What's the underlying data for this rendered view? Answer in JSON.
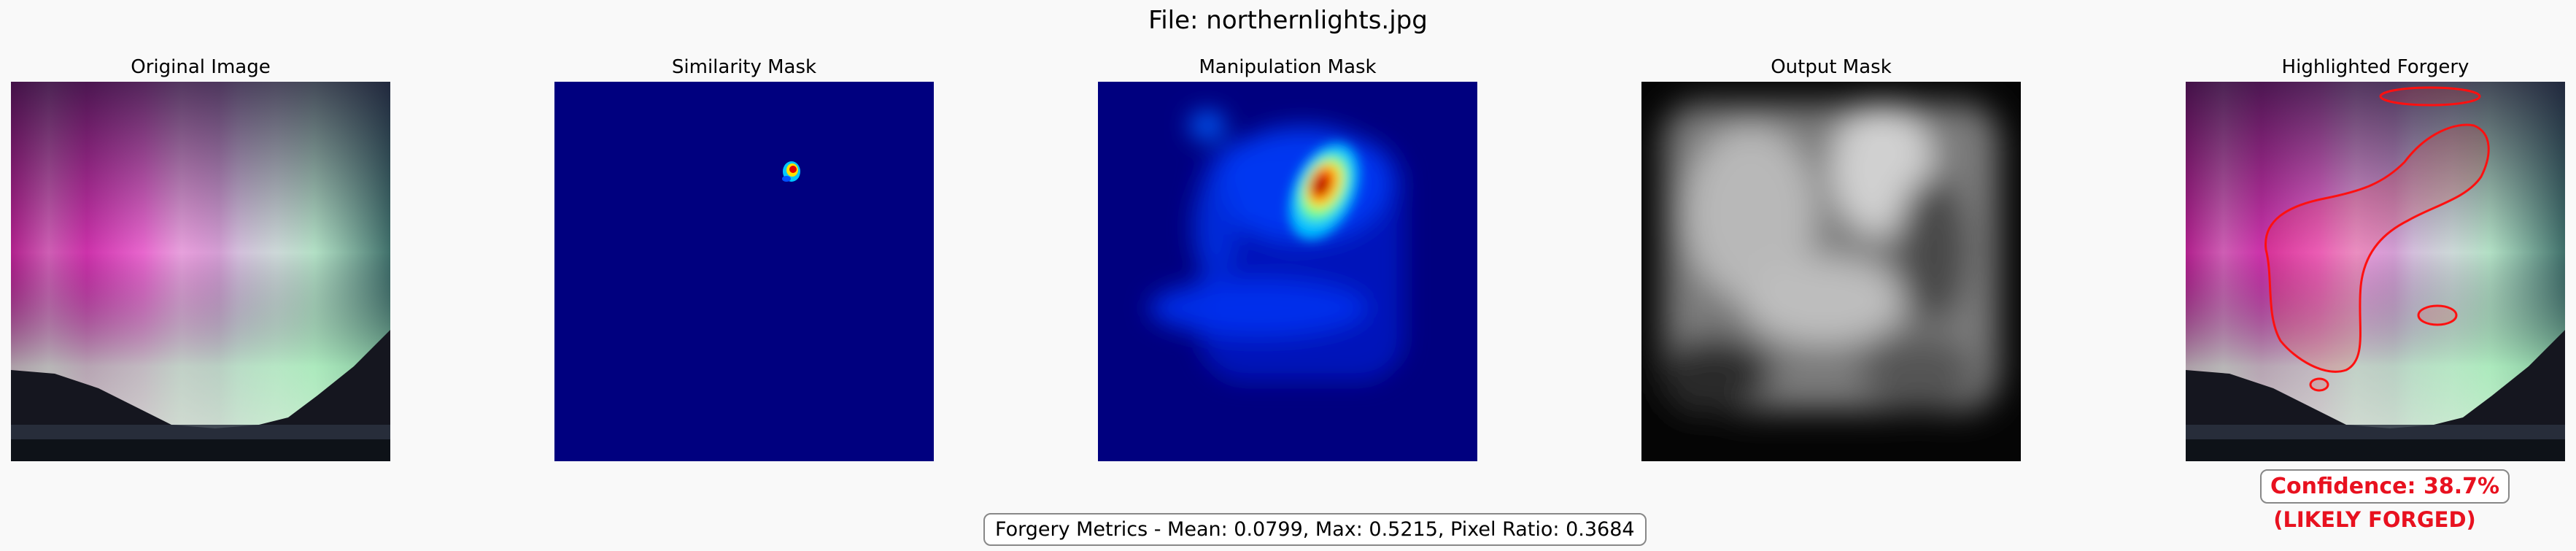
{
  "figure": {
    "title": "File: northernlights.jpg"
  },
  "panels": [
    {
      "title": "Original Image"
    },
    {
      "title": "Similarity Mask"
    },
    {
      "title": "Manipulation Mask"
    },
    {
      "title": "Output Mask"
    },
    {
      "title": "Highlighted Forgery"
    }
  ],
  "result": {
    "confidence": "Confidence: 38.7%",
    "verdict": "(LIKELY FORGED)"
  },
  "metrics": {
    "text": "Forgery Metrics - Mean: 0.0799, Max: 0.5215, Pixel Ratio: 0.3684"
  },
  "colors": {
    "highlight": "#e8111f",
    "jet_background": "#00007f"
  }
}
